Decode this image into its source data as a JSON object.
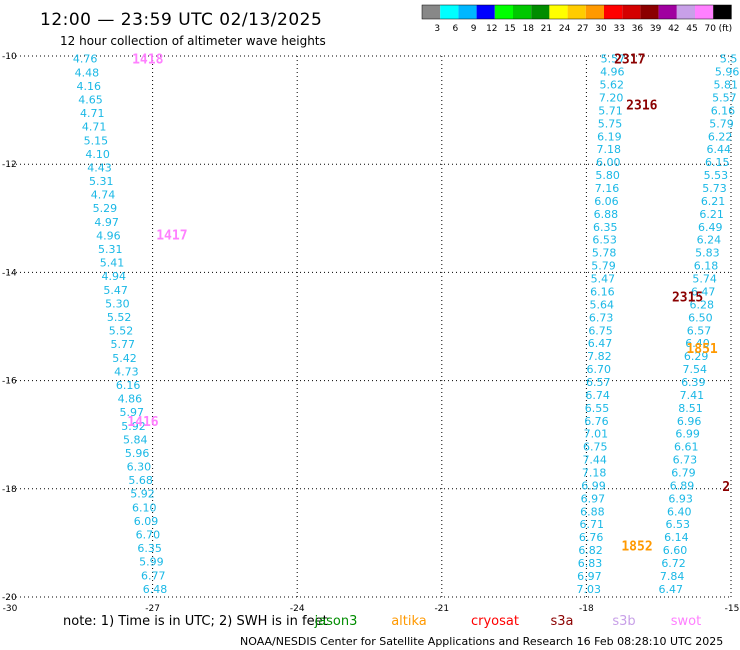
{
  "title": "12:00 — 23:59 UTC 02/13/2025",
  "subtitle": "12 hour collection of altimeter wave heights",
  "legend": {
    "labels": [
      "3",
      "6",
      "9",
      "12",
      "15",
      "18",
      "21",
      "24",
      "27",
      "30",
      "33",
      "36",
      "39",
      "42",
      "45",
      "70",
      "(ft)"
    ],
    "colors": [
      "#888888",
      "#00ffff",
      "#00b7ff",
      "#0000ff",
      "#00ff00",
      "#00c800",
      "#008c00",
      "#ffff00",
      "#ffcc00",
      "#ff9900",
      "#ff0000",
      "#d40000",
      "#8b0000",
      "#a000a0",
      "#c8a0e8",
      "#ff80ff",
      "#000000"
    ]
  },
  "note": "note:  1) Time is in UTC; 2) SWH is in feet",
  "satellites": [
    {
      "name": "jason3",
      "color": "#008c00"
    },
    {
      "name": "altika",
      "color": "#ff9900"
    },
    {
      "name": "cryosat",
      "color": "#ff0000"
    },
    {
      "name": "s3a",
      "color": "#8b0000"
    },
    {
      "name": "s3b",
      "color": "#c8a0e8"
    },
    {
      "name": "swot",
      "color": "#ff80ff"
    }
  ],
  "footer": "NOAA/NESDIS Center for Satellite Applications and Research    16 Feb 08:28:10 UTC 2025",
  "chart_data": {
    "type": "scatter",
    "xlabel": "",
    "ylabel": "",
    "xlim": [
      -30,
      -15
    ],
    "ylim": [
      -20,
      -10
    ],
    "x_ticks": [
      -30,
      -27,
      -24,
      -21,
      -18,
      -15
    ],
    "y_ticks": [
      -10,
      -12,
      -14,
      -16,
      -18,
      -20
    ],
    "grid": true,
    "tracks": [
      {
        "x_start": -28.4,
        "x_end": -26.95,
        "y_start": -10.05,
        "y_end": -19.85,
        "values": [
          "4.76",
          "4.48",
          "4.16",
          "4.65",
          "4.71",
          "4.71",
          "5.15",
          "4.10",
          "4.43",
          "5.31",
          "4.74",
          "5.29",
          "4.97",
          "4.96",
          "5.31",
          "5.41",
          "4.94",
          "5.47",
          "5.30",
          "5.52",
          "5.52",
          "5.77",
          "5.42",
          "4.73",
          "6.16",
          "4.86",
          "5.97",
          "5.92",
          "5.84",
          "5.96",
          "6.30",
          "5.68",
          "5.92",
          "6.10",
          "6.09",
          "6.70",
          "6.35",
          "5.99",
          "6.77",
          "6.48"
        ]
      },
      {
        "x_start": -17.45,
        "x_end": -17.95,
        "y_start": -10.05,
        "y_end": -19.85,
        "values": [
          "5.57",
          "4.96",
          "5.62",
          "7.20",
          "5.71",
          "5.75",
          "6.19",
          "7.18",
          "6.00",
          "5.80",
          "7.16",
          "6.06",
          "6.88",
          "6.35",
          "6.53",
          "5.78",
          "5.79",
          "5.47",
          "6.16",
          "5.64",
          "6.73",
          "6.75",
          "6.47",
          "7.82",
          "6.70",
          "6.57",
          "6.74",
          "6.55",
          "6.76",
          "7.01",
          "6.75",
          "7.44",
          "7.18",
          "6.99",
          "6.97",
          "6.88",
          "6.71",
          "6.76",
          "6.82",
          "6.83",
          "6.97",
          "7.03"
        ]
      },
      {
        "x_start": -15.05,
        "x_end": -16.25,
        "y_start": -10.05,
        "y_end": -19.85,
        "values": [
          "5.5",
          "5.96",
          "5.81",
          "5.57",
          "6.16",
          "5.79",
          "6.22",
          "6.44",
          "6.15",
          "5.53",
          "5.73",
          "6.21",
          "6.21",
          "6.49",
          "6.24",
          "5.83",
          "6.18",
          "5.74",
          "6.47",
          "6.28",
          "6.50",
          "6.57",
          "6.40",
          "6.29",
          "7.54",
          "6.39",
          "7.41",
          "8.51",
          "6.96",
          "6.99",
          "6.61",
          "6.73",
          "6.79",
          "6.89",
          "6.93",
          "6.40",
          "6.53",
          "6.14",
          "6.60",
          "6.72",
          "7.84",
          "6.47"
        ]
      }
    ],
    "pass_labels": [
      {
        "text": "1418",
        "x": -27.1,
        "y": -10.05,
        "color": "#ff80ff"
      },
      {
        "text": "1417",
        "x": -26.6,
        "y": -13.3,
        "color": "#ff80ff"
      },
      {
        "text": "1416",
        "x": -27.2,
        "y": -16.75,
        "color": "#ff80ff"
      },
      {
        "text": "2317",
        "x": -17.1,
        "y": -10.05,
        "color": "#8b0000"
      },
      {
        "text": "2316",
        "x": -16.85,
        "y": -10.9,
        "color": "#8b0000"
      },
      {
        "text": "2315",
        "x": -15.9,
        "y": -14.45,
        "color": "#8b0000"
      },
      {
        "text": "1851",
        "x": -15.6,
        "y": -15.4,
        "color": "#ff9900"
      },
      {
        "text": "1852",
        "x": -16.95,
        "y": -19.05,
        "color": "#ff9900"
      },
      {
        "text": "2",
        "x": -15.1,
        "y": -17.95,
        "color": "#8b0000"
      }
    ]
  }
}
